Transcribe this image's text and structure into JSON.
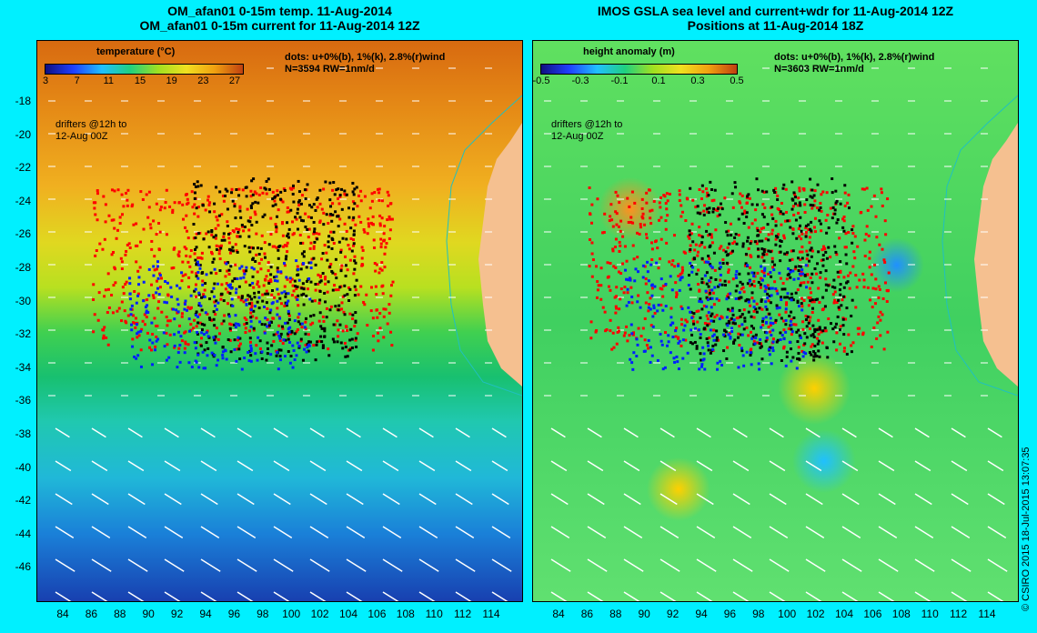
{
  "titles": {
    "left_line1": "OM_afan01 0-15m temp. 11-Aug-2014",
    "left_line2": "OM_afan01 0-15m current for 11-Aug-2014 12Z",
    "right_line1": "IMOS GSLA sea level and current+wdr for 11-Aug-2014 12Z",
    "right_line2": "Positions at 11-Aug-2014 18Z"
  },
  "left_panel": {
    "legend_title": "temperature (°C)",
    "colorbar_ticks": [
      "3",
      "7",
      "11",
      "15",
      "19",
      "23",
      "27"
    ],
    "dots_note_line1": "dots: u+0%(b), 1%(k), 2.8%(r)wind",
    "dots_note_line2": "N=3594 RW=1nm/d",
    "drifter_note_line1": "drifters @12h to",
    "drifter_note_line2": "12-Aug 00Z"
  },
  "right_panel": {
    "legend_title": "height anomaly (m)",
    "colorbar_ticks": [
      "-0.5",
      "-0.3",
      "-0.1",
      "0.1",
      "0.3",
      "0.5"
    ],
    "dots_note_line1": "dots: u+0%(b), 1%(k), 2.8%(r)wind",
    "dots_note_line2": "N=3603 RW=1nm/d",
    "drifter_note_line1": "drifters @12h to",
    "drifter_note_line2": "12-Aug 00Z"
  },
  "y_axis_ticks": [
    "-18",
    "-20",
    "-22",
    "-24",
    "-26",
    "-28",
    "-30",
    "-32",
    "-34",
    "-36",
    "-38",
    "-40",
    "-42",
    "-44",
    "-46"
  ],
  "x_axis_ticks": [
    "84",
    "86",
    "88",
    "90",
    "92",
    "94",
    "96",
    "98",
    "100",
    "102",
    "104",
    "106",
    "108",
    "110",
    "112",
    "114"
  ],
  "copyright": "© CSIRO 2015   18-Jul-2015 13:07:35",
  "colors": {
    "background": "#00f0ff",
    "dots_blue": "#0020ff",
    "dots_black": "#000000",
    "dots_red": "#ff0000",
    "land": "#f5c090",
    "coast": "#20c0c0"
  }
}
